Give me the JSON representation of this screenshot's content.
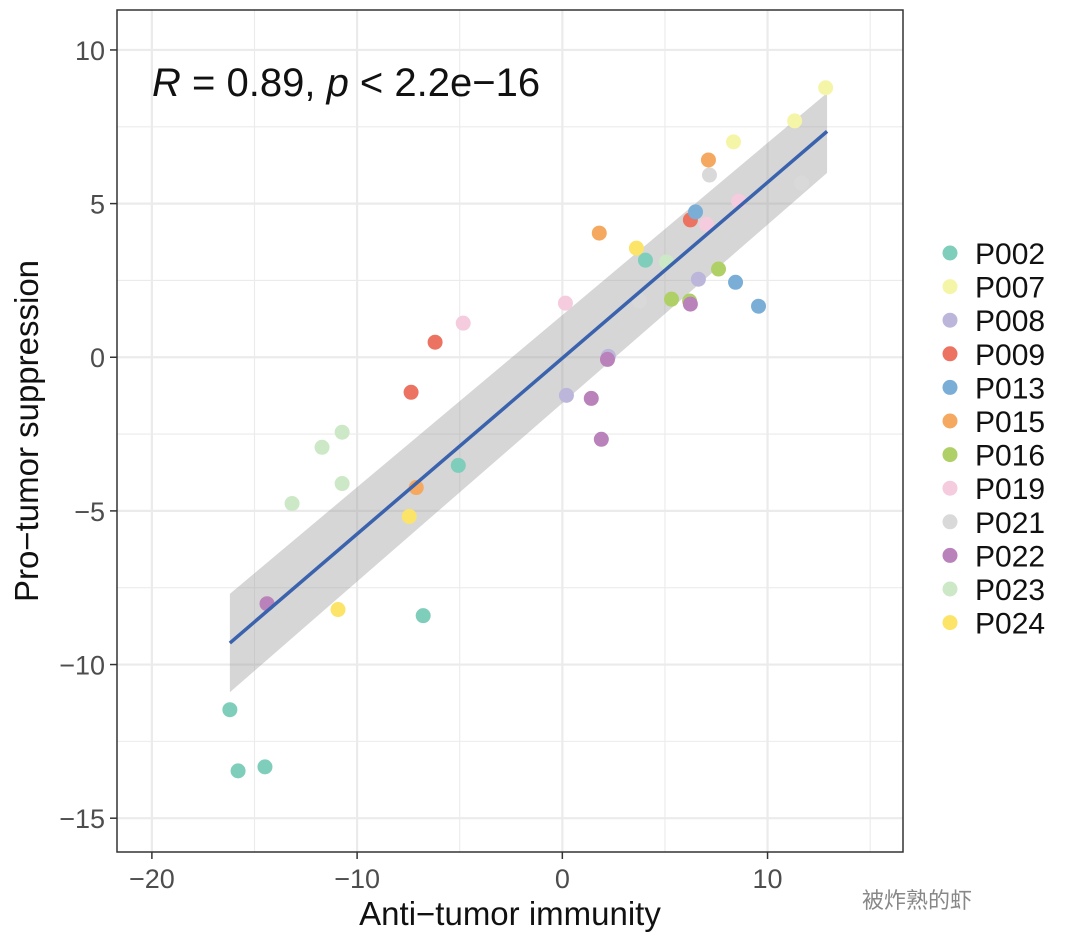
{
  "chart_data": {
    "type": "scatter",
    "xlabel": "Anti−tumor immunity",
    "ylabel": "Pro−tumor suppression",
    "annotation": {
      "r_label": "R",
      "r_text": " = 0.89, ",
      "p_label": "p",
      "p_text": " < 2.2e−16"
    },
    "xlim": [
      -21.7,
      16.6
    ],
    "ylim": [
      -16.1,
      11.3
    ],
    "xticks": [
      -20,
      -10,
      0,
      10
    ],
    "yticks": [
      -15,
      -10,
      -5,
      0,
      5,
      10
    ],
    "xtick_labels": [
      "−20",
      "−10",
      "0",
      "10"
    ],
    "ytick_labels": [
      "−15",
      "−10",
      "−5",
      "0",
      "5",
      "10"
    ],
    "grid": true,
    "legend_placement": "right",
    "regression": {
      "x": [
        -16.2,
        12.9
      ],
      "y": [
        -9.3,
        7.35
      ],
      "ci_lower": [
        -10.9,
        6.0
      ],
      "ci_upper": [
        -7.7,
        8.6
      ],
      "color": "#3a62ad"
    },
    "series": [
      {
        "name": "P002",
        "color": "#7fcdbb",
        "points": [
          [
            4.05,
            3.16
          ],
          [
            -5.07,
            -3.52
          ],
          [
            -6.78,
            -8.41
          ],
          [
            -16.2,
            -11.47
          ],
          [
            -15.8,
            -13.46
          ],
          [
            -14.49,
            -13.33
          ]
        ]
      },
      {
        "name": "P007",
        "color": "#f5f5a8",
        "points": [
          [
            12.83,
            8.77
          ],
          [
            11.32,
            7.69
          ],
          [
            8.34,
            7.01
          ]
        ]
      },
      {
        "name": "P008",
        "color": "#bcb6da",
        "points": [
          [
            6.63,
            2.54
          ],
          [
            0.2,
            -1.24
          ],
          [
            2.24,
            0.03
          ]
        ]
      },
      {
        "name": "P009",
        "color": "#ec7262",
        "points": [
          [
            6.24,
            4.47
          ],
          [
            -6.2,
            0.49
          ],
          [
            -7.37,
            -1.14
          ]
        ]
      },
      {
        "name": "P013",
        "color": "#7aaed6",
        "points": [
          [
            6.49,
            4.73
          ],
          [
            8.44,
            2.44
          ],
          [
            9.56,
            1.66
          ]
        ]
      },
      {
        "name": "P015",
        "color": "#f5a860",
        "points": [
          [
            7.12,
            6.42
          ],
          [
            1.8,
            4.04
          ],
          [
            -7.12,
            -4.24
          ]
        ]
      },
      {
        "name": "P016",
        "color": "#afd066",
        "points": [
          [
            5.32,
            1.89
          ],
          [
            7.61,
            2.87
          ],
          [
            6.2,
            1.83
          ]
        ]
      },
      {
        "name": "P019",
        "color": "#f5cbde",
        "points": [
          [
            8.59,
            5.08
          ],
          [
            7.02,
            4.33
          ],
          [
            0.15,
            1.76
          ],
          [
            -4.83,
            1.11
          ]
        ]
      },
      {
        "name": "P021",
        "color": "#d9d9d9",
        "points": [
          [
            7.17,
            5.93
          ],
          [
            11.66,
            5.67
          ],
          [
            3.76,
            1.83
          ]
        ]
      },
      {
        "name": "P022",
        "color": "#b982ba",
        "points": [
          [
            6.24,
            1.73
          ],
          [
            1.41,
            -1.34
          ],
          [
            1.9,
            -2.67
          ],
          [
            2.2,
            -0.07
          ],
          [
            -14.39,
            -8.02
          ]
        ]
      },
      {
        "name": "P023",
        "color": "#cde8c6",
        "points": [
          [
            5.07,
            3.1
          ],
          [
            -10.73,
            -2.44
          ],
          [
            -11.71,
            -2.93
          ],
          [
            -10.73,
            -4.11
          ],
          [
            -13.17,
            -4.76
          ]
        ]
      },
      {
        "name": "P024",
        "color": "#fbe468",
        "points": [
          [
            3.61,
            3.55
          ],
          [
            -7.46,
            -5.18
          ],
          [
            -10.93,
            -8.21
          ]
        ]
      }
    ]
  },
  "watermark": "被炸熟的虾"
}
